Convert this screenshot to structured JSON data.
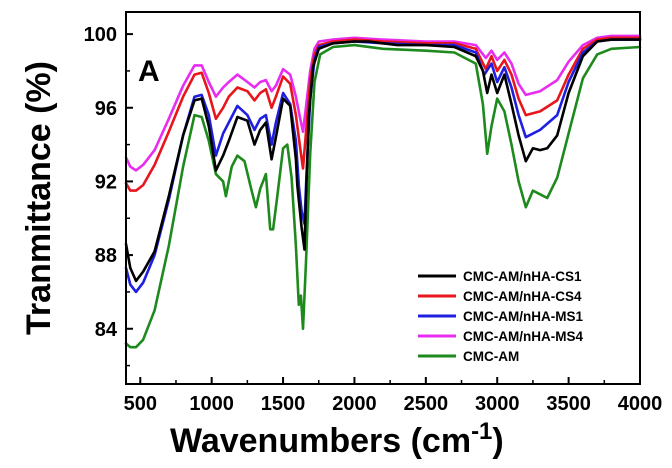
{
  "chart_data": {
    "type": "line",
    "panel_label": "A",
    "xlabel": "Wavenumbers (cm",
    "xlabel_sup": "-1",
    "xlabel_close": ")",
    "ylabel": "Tranmittance (%)",
    "xlim": [
      400,
      4000
    ],
    "ylim": [
      81,
      101.2
    ],
    "xticks": [
      500,
      1000,
      1500,
      2000,
      2500,
      3000,
      3500,
      4000
    ],
    "yticks": [
      84,
      88,
      92,
      96,
      100
    ],
    "legend_position": "lower-right",
    "series": [
      {
        "name": "CMC-AM/nHA-CS1",
        "color": "#000000",
        "points": [
          [
            400,
            88.6
          ],
          [
            430,
            87.3
          ],
          [
            470,
            86.6
          ],
          [
            520,
            87.1
          ],
          [
            600,
            88.2
          ],
          [
            700,
            91.2
          ],
          [
            800,
            94.5
          ],
          [
            880,
            96.4
          ],
          [
            930,
            96.5
          ],
          [
            980,
            95.0
          ],
          [
            1030,
            92.6
          ],
          [
            1080,
            93.4
          ],
          [
            1120,
            94.2
          ],
          [
            1180,
            95.5
          ],
          [
            1250,
            95.3
          ],
          [
            1300,
            94.0
          ],
          [
            1340,
            94.8
          ],
          [
            1380,
            95.2
          ],
          [
            1420,
            93.2
          ],
          [
            1450,
            94.4
          ],
          [
            1500,
            96.5
          ],
          [
            1550,
            96.1
          ],
          [
            1590,
            93.2
          ],
          [
            1600,
            91.8
          ],
          [
            1630,
            89.5
          ],
          [
            1650,
            88.3
          ],
          [
            1660,
            91.0
          ],
          [
            1680,
            95.5
          ],
          [
            1710,
            98.2
          ],
          [
            1750,
            99.2
          ],
          [
            1850,
            99.5
          ],
          [
            2000,
            99.6
          ],
          [
            2100,
            99.6
          ],
          [
            2300,
            99.4
          ],
          [
            2500,
            99.4
          ],
          [
            2700,
            99.3
          ],
          [
            2850,
            98.8
          ],
          [
            2900,
            98.0
          ],
          [
            2930,
            96.8
          ],
          [
            2960,
            97.8
          ],
          [
            3000,
            96.8
          ],
          [
            3050,
            97.8
          ],
          [
            3100,
            96.2
          ],
          [
            3150,
            94.5
          ],
          [
            3200,
            93.1
          ],
          [
            3250,
            93.8
          ],
          [
            3300,
            93.7
          ],
          [
            3350,
            93.8
          ],
          [
            3420,
            94.5
          ],
          [
            3500,
            96.8
          ],
          [
            3600,
            98.8
          ],
          [
            3700,
            99.6
          ],
          [
            3800,
            99.7
          ],
          [
            4000,
            99.7
          ]
        ]
      },
      {
        "name": "CMC-AM/nHA-CS4",
        "color": "#e8151c",
        "points": [
          [
            400,
            91.9
          ],
          [
            430,
            91.5
          ],
          [
            470,
            91.5
          ],
          [
            520,
            91.8
          ],
          [
            600,
            92.9
          ],
          [
            700,
            94.7
          ],
          [
            800,
            96.6
          ],
          [
            880,
            97.8
          ],
          [
            930,
            97.9
          ],
          [
            980,
            96.8
          ],
          [
            1030,
            95.4
          ],
          [
            1080,
            96.0
          ],
          [
            1120,
            96.6
          ],
          [
            1180,
            97.1
          ],
          [
            1250,
            96.9
          ],
          [
            1300,
            96.4
          ],
          [
            1340,
            96.8
          ],
          [
            1380,
            97.0
          ],
          [
            1420,
            96.0
          ],
          [
            1450,
            96.6
          ],
          [
            1500,
            97.7
          ],
          [
            1550,
            97.3
          ],
          [
            1590,
            95.6
          ],
          [
            1620,
            93.8
          ],
          [
            1640,
            92.7
          ],
          [
            1660,
            94.6
          ],
          [
            1690,
            97.5
          ],
          [
            1720,
            98.9
          ],
          [
            1750,
            99.4
          ],
          [
            1850,
            99.6
          ],
          [
            2000,
            99.7
          ],
          [
            2200,
            99.6
          ],
          [
            2500,
            99.5
          ],
          [
            2700,
            99.5
          ],
          [
            2850,
            99.2
          ],
          [
            2920,
            98.1
          ],
          [
            2960,
            98.8
          ],
          [
            3000,
            98.0
          ],
          [
            3050,
            98.6
          ],
          [
            3100,
            97.8
          ],
          [
            3150,
            96.5
          ],
          [
            3200,
            95.6
          ],
          [
            3300,
            95.8
          ],
          [
            3420,
            96.4
          ],
          [
            3500,
            97.8
          ],
          [
            3600,
            99.2
          ],
          [
            3700,
            99.7
          ],
          [
            3800,
            99.8
          ],
          [
            4000,
            99.8
          ]
        ]
      },
      {
        "name": "CMC-AM/nHA-MS1",
        "color": "#1f1fe0",
        "points": [
          [
            400,
            87.3
          ],
          [
            430,
            86.4
          ],
          [
            470,
            86.0
          ],
          [
            520,
            86.5
          ],
          [
            600,
            88.0
          ],
          [
            700,
            91.0
          ],
          [
            800,
            94.5
          ],
          [
            880,
            96.6
          ],
          [
            930,
            96.7
          ],
          [
            980,
            95.6
          ],
          [
            1030,
            93.4
          ],
          [
            1080,
            94.6
          ],
          [
            1120,
            95.2
          ],
          [
            1180,
            96.1
          ],
          [
            1250,
            95.6
          ],
          [
            1300,
            94.8
          ],
          [
            1340,
            95.4
          ],
          [
            1380,
            95.6
          ],
          [
            1420,
            94.0
          ],
          [
            1450,
            95.2
          ],
          [
            1500,
            96.8
          ],
          [
            1550,
            96.2
          ],
          [
            1590,
            94.2
          ],
          [
            1610,
            91.8
          ],
          [
            1630,
            90.4
          ],
          [
            1650,
            89.7
          ],
          [
            1665,
            92.5
          ],
          [
            1690,
            96.5
          ],
          [
            1720,
            98.6
          ],
          [
            1750,
            99.3
          ],
          [
            1850,
            99.5
          ],
          [
            2000,
            99.6
          ],
          [
            2200,
            99.5
          ],
          [
            2500,
            99.4
          ],
          [
            2700,
            99.4
          ],
          [
            2850,
            99.0
          ],
          [
            2910,
            97.8
          ],
          [
            2960,
            98.4
          ],
          [
            3000,
            97.4
          ],
          [
            3050,
            98.2
          ],
          [
            3100,
            97.1
          ],
          [
            3150,
            95.6
          ],
          [
            3200,
            94.4
          ],
          [
            3300,
            94.8
          ],
          [
            3420,
            95.6
          ],
          [
            3500,
            97.4
          ],
          [
            3600,
            99.0
          ],
          [
            3700,
            99.6
          ],
          [
            3800,
            99.7
          ],
          [
            4000,
            99.7
          ]
        ]
      },
      {
        "name": "CMC-AM/nHA-MS4",
        "color": "#e82cf0",
        "points": [
          [
            400,
            93.3
          ],
          [
            430,
            92.8
          ],
          [
            470,
            92.6
          ],
          [
            520,
            92.9
          ],
          [
            600,
            93.7
          ],
          [
            700,
            95.4
          ],
          [
            800,
            97.2
          ],
          [
            880,
            98.3
          ],
          [
            930,
            98.3
          ],
          [
            980,
            97.4
          ],
          [
            1030,
            96.6
          ],
          [
            1080,
            97.1
          ],
          [
            1120,
            97.4
          ],
          [
            1180,
            97.8
          ],
          [
            1250,
            97.4
          ],
          [
            1300,
            97.1
          ],
          [
            1340,
            97.4
          ],
          [
            1380,
            97.5
          ],
          [
            1420,
            96.9
          ],
          [
            1450,
            97.2
          ],
          [
            1500,
            98.1
          ],
          [
            1550,
            97.8
          ],
          [
            1590,
            96.6
          ],
          [
            1620,
            95.4
          ],
          [
            1640,
            94.7
          ],
          [
            1660,
            96.0
          ],
          [
            1690,
            98.0
          ],
          [
            1720,
            99.2
          ],
          [
            1750,
            99.6
          ],
          [
            1850,
            99.7
          ],
          [
            2000,
            99.8
          ],
          [
            2200,
            99.7
          ],
          [
            2500,
            99.6
          ],
          [
            2700,
            99.6
          ],
          [
            2850,
            99.4
          ],
          [
            2920,
            98.7
          ],
          [
            2960,
            99.1
          ],
          [
            3000,
            98.6
          ],
          [
            3050,
            99.0
          ],
          [
            3100,
            98.4
          ],
          [
            3150,
            97.3
          ],
          [
            3200,
            96.7
          ],
          [
            3300,
            96.9
          ],
          [
            3420,
            97.5
          ],
          [
            3500,
            98.5
          ],
          [
            3600,
            99.4
          ],
          [
            3700,
            99.8
          ],
          [
            3800,
            99.9
          ],
          [
            4000,
            99.9
          ]
        ]
      },
      {
        "name": "CMC-AM",
        "color": "#1e8a1e",
        "points": [
          [
            400,
            83.2
          ],
          [
            430,
            83.0
          ],
          [
            470,
            83.0
          ],
          [
            520,
            83.4
          ],
          [
            600,
            85.0
          ],
          [
            700,
            88.5
          ],
          [
            800,
            92.8
          ],
          [
            880,
            95.6
          ],
          [
            930,
            95.5
          ],
          [
            980,
            94.2
          ],
          [
            1030,
            92.4
          ],
          [
            1080,
            92.0
          ],
          [
            1100,
            91.2
          ],
          [
            1140,
            92.8
          ],
          [
            1180,
            93.4
          ],
          [
            1230,
            93.1
          ],
          [
            1280,
            91.5
          ],
          [
            1310,
            90.6
          ],
          [
            1340,
            91.6
          ],
          [
            1380,
            92.4
          ],
          [
            1410,
            89.4
          ],
          [
            1430,
            89.4
          ],
          [
            1460,
            91.2
          ],
          [
            1500,
            93.8
          ],
          [
            1530,
            94.0
          ],
          [
            1560,
            92.2
          ],
          [
            1590,
            88.5
          ],
          [
            1610,
            85.3
          ],
          [
            1625,
            85.8
          ],
          [
            1640,
            84.0
          ],
          [
            1660,
            87.5
          ],
          [
            1690,
            93.5
          ],
          [
            1720,
            97.4
          ],
          [
            1760,
            98.9
          ],
          [
            1850,
            99.3
          ],
          [
            2000,
            99.4
          ],
          [
            2200,
            99.2
          ],
          [
            2500,
            99.1
          ],
          [
            2700,
            99.0
          ],
          [
            2850,
            98.4
          ],
          [
            2900,
            96.2
          ],
          [
            2930,
            93.5
          ],
          [
            2960,
            95.0
          ],
          [
            3000,
            96.5
          ],
          [
            3050,
            95.8
          ],
          [
            3100,
            94.0
          ],
          [
            3150,
            92.0
          ],
          [
            3200,
            90.6
          ],
          [
            3250,
            91.5
          ],
          [
            3300,
            91.3
          ],
          [
            3350,
            91.1
          ],
          [
            3420,
            92.2
          ],
          [
            3500,
            94.6
          ],
          [
            3600,
            97.6
          ],
          [
            3700,
            98.9
          ],
          [
            3800,
            99.2
          ],
          [
            4000,
            99.3
          ]
        ]
      }
    ]
  }
}
